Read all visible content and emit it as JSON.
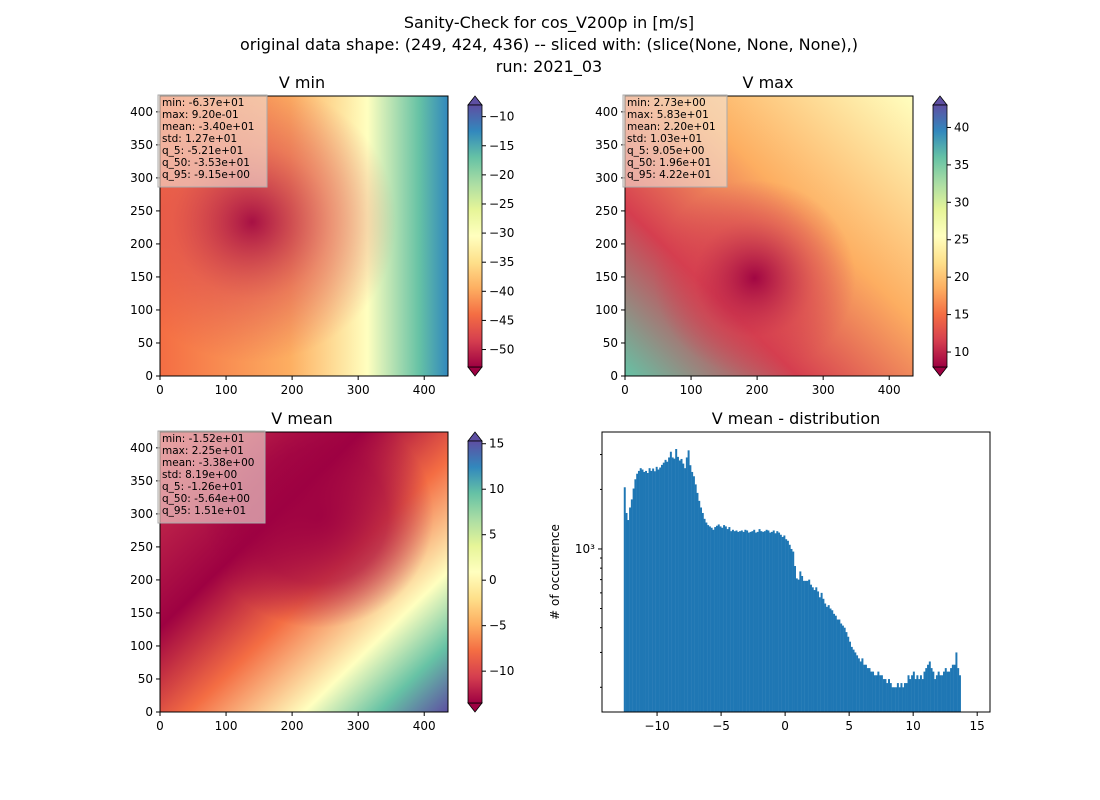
{
  "suptitle": {
    "line1": "Sanity-Check for cos_V200p in [m/s]",
    "line2": "original data shape: (249, 424, 436) -- sliced with: (slice(None, None, None),)",
    "line3": "run: 2021_03"
  },
  "colors": {
    "spectral": [
      "#9e0142",
      "#d53e4f",
      "#f46d43",
      "#fdae61",
      "#fee08b",
      "#ffffbf",
      "#e6f598",
      "#abdda4",
      "#66c2a5",
      "#3288bd",
      "#5e4fa2"
    ],
    "histogram_bar": "#1f77b4",
    "stats_box": "#f4e4d8"
  },
  "chart_data": [
    {
      "type": "heatmap",
      "title": "V min",
      "xlim": [
        0,
        436
      ],
      "ylim": [
        0,
        424
      ],
      "xticks": [
        0,
        100,
        200,
        300,
        400
      ],
      "yticks": [
        0,
        50,
        100,
        150,
        200,
        250,
        300,
        350,
        400
      ],
      "colorbar": {
        "min": -53,
        "max": -8,
        "ticks": [
          -50,
          -45,
          -40,
          -35,
          -30,
          -25,
          -20,
          -15,
          -10
        ],
        "extend": "both",
        "colormap": "Spectral"
      },
      "stats": [
        "min: -6.37e+01",
        "max: 9.20e-01",
        "mean: -3.40e+01",
        "std: 1.27e+01",
        "q_5: -5.21e+01",
        "q_50: -3.53e+01",
        "q_95: -9.15e+00"
      ]
    },
    {
      "type": "heatmap",
      "title": "V max",
      "xlim": [
        0,
        436
      ],
      "ylim": [
        0,
        424
      ],
      "xticks": [
        0,
        100,
        200,
        300,
        400
      ],
      "yticks": [
        0,
        50,
        100,
        150,
        200,
        250,
        300,
        350,
        400
      ],
      "colorbar": {
        "min": 8,
        "max": 43,
        "ticks": [
          10,
          15,
          20,
          25,
          30,
          35,
          40
        ],
        "extend": "both",
        "colormap": "Spectral"
      },
      "stats": [
        "min: 2.73e+00",
        "max: 5.83e+01",
        "mean: 2.20e+01",
        "std: 1.03e+01",
        "q_5: 9.05e+00",
        "q_50: 1.96e+01",
        "q_95: 4.22e+01"
      ]
    },
    {
      "type": "heatmap",
      "title": "V mean",
      "xlim": [
        0,
        436
      ],
      "ylim": [
        0,
        424
      ],
      "xticks": [
        0,
        100,
        200,
        300,
        400
      ],
      "yticks": [
        0,
        50,
        100,
        150,
        200,
        250,
        300,
        350,
        400
      ],
      "colorbar": {
        "min": -13.5,
        "max": 15.3,
        "ticks": [
          -10,
          -5,
          0,
          5,
          10,
          15
        ],
        "extend": "both",
        "colormap": "Spectral"
      },
      "stats": [
        "min: -1.52e+01",
        "max: 2.25e+01",
        "mean: -3.38e+00",
        "std: 8.19e+00",
        "q_5: -1.26e+01",
        "q_50: -5.64e+00",
        "q_95: 1.51e+01"
      ]
    },
    {
      "type": "bar",
      "title": "V mean - distribution",
      "ylabel": "# of occurrence",
      "yscale": "log",
      "xlim": [
        -14.3,
        16.0
      ],
      "ylim": [
        150,
        3900
      ],
      "xticks": [
        -10,
        -5,
        0,
        5,
        10,
        15
      ],
      "yticks_major": [
        {
          "value": 1000,
          "label": "10³"
        }
      ],
      "bin_start": -12.6,
      "bin_width": 0.1385,
      "values": [
        2050,
        1520,
        1400,
        1620,
        1780,
        2020,
        2250,
        2400,
        2480,
        2560,
        2520,
        2450,
        2480,
        2420,
        2560,
        2480,
        2550,
        2470,
        2600,
        2520,
        2580,
        2660,
        2730,
        2820,
        2760,
        2900,
        3100,
        2900,
        2860,
        3200,
        2920,
        2800,
        2850,
        2700,
        2560,
        2900,
        3150,
        2650,
        2450,
        2330,
        2120,
        1920,
        1750,
        1620,
        1520,
        1420,
        1360,
        1320,
        1300,
        1280,
        1250,
        1290,
        1310,
        1330,
        1300,
        1280,
        1320,
        1300,
        1260,
        1290,
        1230,
        1250,
        1230,
        1240,
        1220,
        1230,
        1240,
        1220,
        1250,
        1240,
        1210,
        1220,
        1230,
        1250,
        1210,
        1220,
        1260,
        1230,
        1220,
        1230,
        1250,
        1240,
        1210,
        1220,
        1240,
        1200,
        1230,
        1210,
        1180,
        1150,
        1170,
        1120,
        1100,
        1050,
        1000,
        970,
        820,
        710,
        700,
        770,
        730,
        690,
        690,
        690,
        700,
        660,
        640,
        620,
        640,
        610,
        570,
        600,
        560,
        530,
        510,
        520,
        500,
        490,
        470,
        460,
        440,
        440,
        420,
        410,
        400,
        380,
        360,
        340,
        320,
        310,
        300,
        290,
        280,
        270,
        280,
        260,
        260,
        250,
        250,
        240,
        240,
        230,
        230,
        240,
        230,
        230,
        220,
        220,
        210,
        220,
        210,
        200,
        200,
        200,
        210,
        200,
        210,
        200,
        210,
        210,
        230,
        220,
        230,
        240,
        220,
        230,
        220,
        230,
        220,
        240,
        250,
        260,
        270,
        250,
        240,
        220,
        230,
        240,
        230,
        230,
        240,
        250,
        240,
        240,
        250,
        260,
        260,
        300,
        250,
        230
      ]
    }
  ]
}
